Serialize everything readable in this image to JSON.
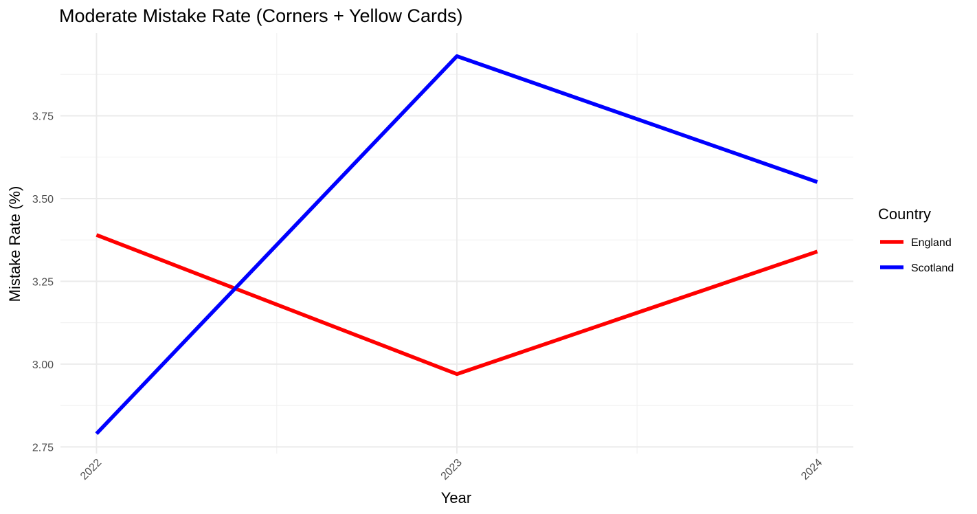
{
  "chart_data": {
    "type": "line",
    "title": "Moderate Mistake Rate (Corners + Yellow Cards)",
    "xlabel": "Year",
    "ylabel": "Mistake Rate (%)",
    "categories": [
      "2022",
      "2023",
      "2024"
    ],
    "x": [
      2022,
      2023,
      2024
    ],
    "xlim": [
      2021.9,
      2024.1
    ],
    "ylim": [
      2.73,
      4.0
    ],
    "y_ticks": [
      2.75,
      3.0,
      3.25,
      3.5,
      3.75
    ],
    "y_tick_labels": [
      "2.75",
      "3.00",
      "3.25",
      "3.50",
      "3.75"
    ],
    "y_minor_ticks": [
      2.875,
      3.125,
      3.375,
      3.625,
      3.875
    ],
    "x_minor_ticks": [
      2022.5,
      2023.5
    ],
    "grid": true,
    "series": [
      {
        "name": "England",
        "color": "#ff0000",
        "values": [
          3.39,
          2.97,
          3.34
        ]
      },
      {
        "name": "Scotland",
        "color": "#0000ff",
        "values": [
          2.79,
          3.93,
          3.55
        ]
      }
    ],
    "legend": {
      "title": "Country",
      "placement": "right",
      "items": [
        {
          "label": "England",
          "color": "#ff0000"
        },
        {
          "label": "Scotland",
          "color": "#0000ff"
        }
      ]
    }
  }
}
